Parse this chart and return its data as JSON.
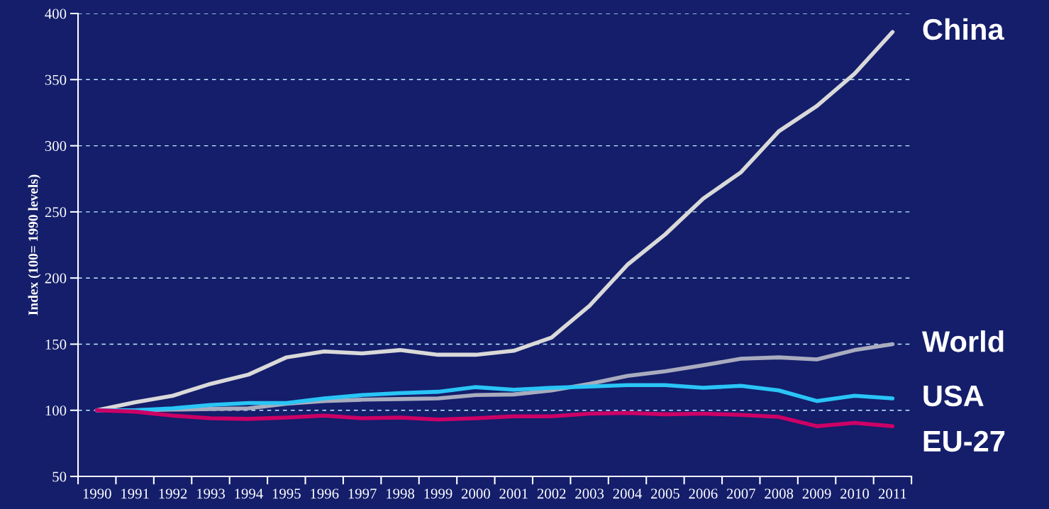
{
  "chart_data": {
    "type": "line",
    "ylabel": "Index (100= 1990 levels)",
    "categories": [
      "1990",
      "1991",
      "1992",
      "1993",
      "1994",
      "1995",
      "1996",
      "1997",
      "1998",
      "1999",
      "2000",
      "2001",
      "2002",
      "2003",
      "2004",
      "2005",
      "2006",
      "2007",
      "2008",
      "2009",
      "2010",
      "2011"
    ],
    "series": [
      {
        "name": "China",
        "color": "#d9d9d9",
        "values": [
          100,
          106,
          111,
          120,
          127,
          140,
          144.5,
          143,
          145.5,
          142,
          142,
          145,
          155,
          179,
          210,
          233,
          260,
          280,
          311,
          330,
          354.5,
          386
        ]
      },
      {
        "name": "World",
        "color": "#a9acbe",
        "values": [
          100,
          100,
          100.5,
          101,
          101.5,
          105,
          107,
          108,
          108.5,
          109,
          111.5,
          112,
          115,
          120,
          126,
          129.5,
          134,
          139,
          140,
          138.5,
          145.5,
          150
        ]
      },
      {
        "name": "USA",
        "color": "#29c5f6",
        "values": [
          100,
          100,
          101.5,
          104,
          105.5,
          105.5,
          109,
          111.5,
          113,
          114,
          117.5,
          115.5,
          117,
          118,
          119,
          119,
          117,
          118.5,
          115,
          107,
          111,
          109
        ]
      },
      {
        "name": "EU-27",
        "color": "#cc0066",
        "values": [
          100,
          99,
          96,
          94,
          93.5,
          94.5,
          96,
          94,
          94.5,
          93,
          94,
          95.5,
          95.5,
          97.5,
          98,
          97,
          97.5,
          96.5,
          95,
          88,
          90.5,
          88
        ]
      }
    ],
    "ylim": [
      50,
      400
    ],
    "yticks": [
      50,
      100,
      150,
      200,
      250,
      300,
      350,
      400
    ],
    "grid": "y",
    "legend": false,
    "marker": "none",
    "line_style": "solid"
  }
}
